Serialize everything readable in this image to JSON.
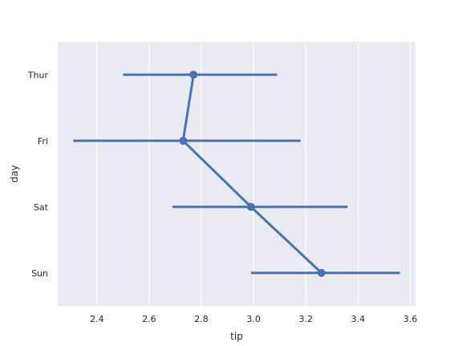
{
  "chart_data": {
    "type": "pointplot",
    "xlabel": "tip",
    "ylabel": "day",
    "categories": [
      "Thur",
      "Fri",
      "Sat",
      "Sun"
    ],
    "means": [
      2.77,
      2.73,
      2.99,
      3.26
    ],
    "ci_low": [
      2.5,
      2.31,
      2.69,
      2.99
    ],
    "ci_high": [
      3.09,
      3.18,
      3.36,
      3.56
    ],
    "xlim": [
      2.25,
      3.62
    ],
    "xticks": [
      2.4,
      2.6,
      2.8,
      3.0,
      3.2,
      3.4,
      3.6
    ],
    "xtick_labels": [
      "2.4",
      "2.6",
      "2.8",
      "3.0",
      "3.2",
      "3.4",
      "3.6"
    ],
    "grid": true,
    "line_color": "#4c72b0",
    "background_color": "#eaeaf2",
    "grid_color": "#ffffff"
  }
}
